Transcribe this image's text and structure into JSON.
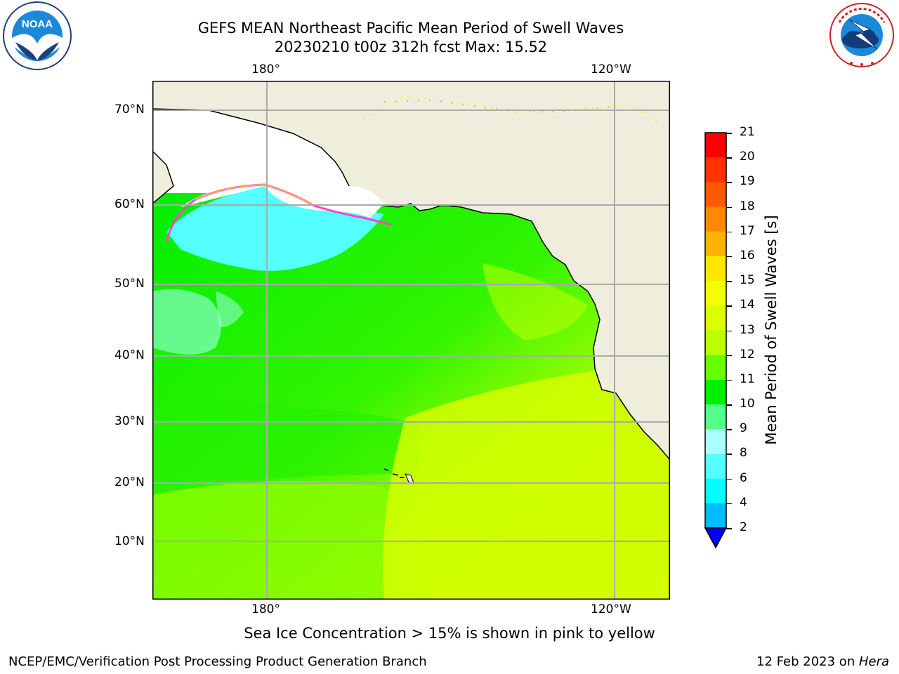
{
  "header": {
    "title_line1": "GEFS MEAN Northeast Pacific Mean Period of Swell Waves",
    "title_line2": "20230210 t00z 312h fcst   Max: 15.52"
  },
  "logos": {
    "left": {
      "name": "noaa-logo",
      "text": "NOAA"
    },
    "right": {
      "name": "national-weather-service-logo",
      "text": "NATIONAL WEATHER SERVICE"
    }
  },
  "map": {
    "lon_labels_top": [
      "180°",
      "120°W"
    ],
    "lon_labels_bottom": [
      "180°",
      "120°W"
    ],
    "lat_labels": [
      "70°N",
      "60°N",
      "50°N",
      "40°N",
      "30°N",
      "20°N",
      "10°N"
    ],
    "land_color": "#efeedc",
    "ice_colors": [
      "#ff44cc",
      "#ffaa55",
      "#ffee33"
    ]
  },
  "colorbar": {
    "label": "Mean Period of Swell Waves [s]",
    "ticks": [
      "21",
      "20",
      "19",
      "18",
      "17",
      "16",
      "15",
      "14",
      "13",
      "12",
      "11",
      "10",
      "9",
      "8",
      "6",
      "4",
      "2"
    ],
    "colors": [
      "#ff0000",
      "#ff3300",
      "#ff5a00",
      "#ff8800",
      "#ffb200",
      "#ffe600",
      "#f3ff00",
      "#d9ff00",
      "#bbff00",
      "#66ff00",
      "#00ee00",
      "#55ff88",
      "#aaffff",
      "#55ffff",
      "#00ffff",
      "#00bbff",
      "#0066ff",
      "#0000ff"
    ]
  },
  "note": "Sea Ice Concentration > 15% is shown in pink to yellow",
  "footer": {
    "left": "NCEP/EMC/Verification Post Processing Product Generation Branch",
    "right_prefix": "12 Feb 2023 on ",
    "right_host": "Hera"
  }
}
